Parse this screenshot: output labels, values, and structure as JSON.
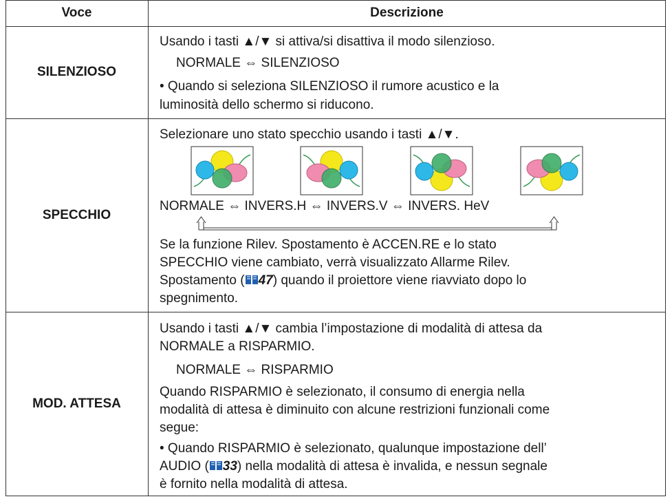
{
  "table": {
    "header": [
      "Voce",
      "Descrizione"
    ],
    "rows": [
      {
        "item": "SILENZIOSO",
        "lines": [
          "Usando i tasti ▲/▼ si attiva/si disattiva il modo silenzioso.",
          "NORMALE ⇔ SILENZIOSO",
          "• Quando si seleziona SILENZIOSO il rumore acustico e la",
          "luminosità dello schermo si riducono."
        ]
      },
      {
        "item": "SPECCHIO",
        "lines": [
          "Selezionare uno stato specchio usando i tasti ▲/▼.",
          "NORMALE ⇔ INVERS.H ⇔ INVERS.V ⇔ INVERS. HeV",
          "Se la funzione Rilev. Spostamento è ACCEN.RE e lo stato",
          "SPECCHIO viene cambiato, verrà visualizzato Allarme Rilev.",
          {
            "before": "Spostamento (",
            "ref": "47",
            "after": ") quando il proiettore viene riavviato dopo lo"
          },
          "spegnimento."
        ]
      },
      {
        "item": "MOD. ATTESA",
        "lines": [
          "Usando i tasti ▲/▼ cambia l’impostazione di modalità di attesa da",
          "NORMALE a RISPARMIO.",
          "NORMALE ⇔ RISPARMIO",
          "Quando RISPARMIO è selezionato, il consumo di energia nella",
          "modalità di attesa è diminuito con alcune restrizioni funzionali come",
          "segue:",
          "• Quando RISPARMIO è selezionato, qualunque impostazione dell’",
          {
            "before": "AUDIO (",
            "ref": "33",
            "after": ") nella modalità di attesa è invalida, e nessun segnale"
          },
          "è fornito nella modalità di attesa."
        ]
      }
    ]
  }
}
